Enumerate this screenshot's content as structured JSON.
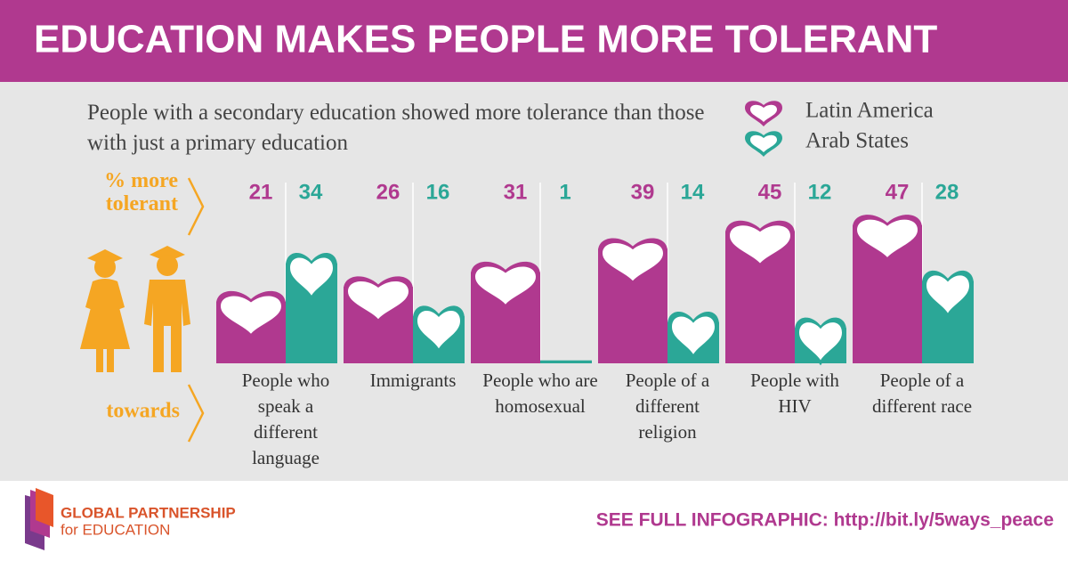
{
  "chart_data": {
    "type": "bar",
    "title": "EDUCATION MAKES PEOPLE MORE TOLERANT",
    "subtitle": "People with a secondary education showed more tolerance than those with just a primary education",
    "y_label": "% more tolerant",
    "x_label": "towards",
    "categories": [
      "People who speak a different language",
      "Immigrants",
      "People who are homosexual",
      "People of a different religion",
      "People with HIV",
      "People of a different race"
    ],
    "series": [
      {
        "name": "Latin America",
        "color": "#b0398f",
        "values": [
          21,
          26,
          31,
          39,
          45,
          47
        ]
      },
      {
        "name": "Arab States",
        "color": "#2ba797",
        "values": [
          34,
          16,
          1,
          14,
          12,
          28
        ]
      }
    ]
  },
  "footer": {
    "logo_line1": "GLOBAL PARTNERSHIP",
    "logo_line2": "for EDUCATION",
    "link": "SEE FULL INFOGRAPHIC: http://bit.ly/5ways_peace"
  }
}
